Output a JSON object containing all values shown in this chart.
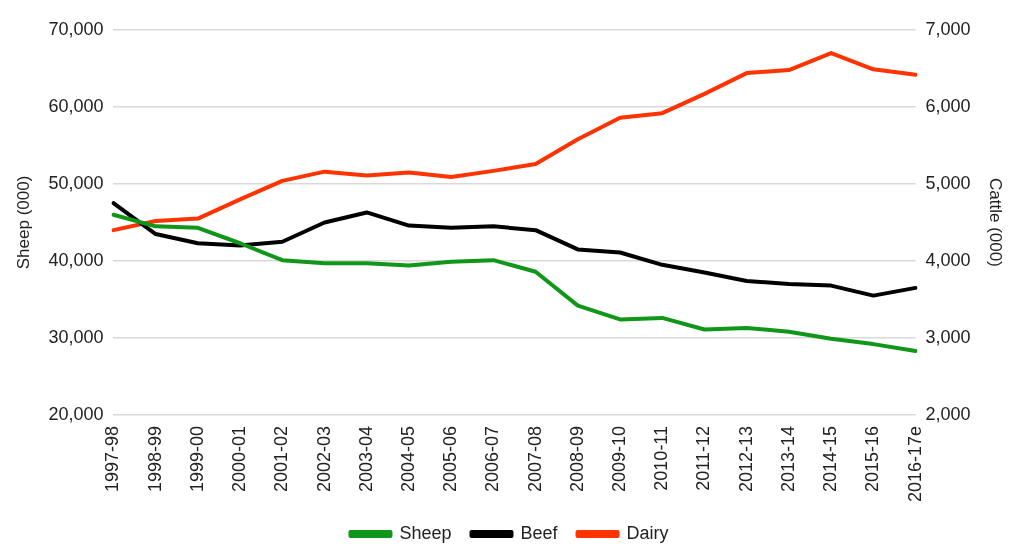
{
  "chart_data": {
    "type": "line",
    "ylabel": "Sheep (000)",
    "y2label": "Cattle (000)",
    "categories": [
      "1997-98",
      "1998-99",
      "1999-00",
      "2000-01",
      "2001-02",
      "2002-03",
      "2003-04",
      "2004-05",
      "2005-06",
      "2006-07",
      "2007-08",
      "2008-09",
      "2009-10",
      "2010-11",
      "2011-12",
      "2012-13",
      "2013-14",
      "2014-15",
      "2015-16",
      "2016-17e"
    ],
    "series": [
      {
        "name": "Sheep",
        "color": "#109618",
        "values": [
          46000,
          44500,
          44300,
          42300,
          40100,
          39700,
          39700,
          39400,
          39900,
          40100,
          38600,
          34200,
          32400,
          32600,
          31100,
          31300,
          30800,
          29900,
          29200,
          28300
        ]
      },
      {
        "name": "Beef",
        "color": "#000000",
        "axis": "y2",
        "values": [
          4750,
          4350,
          4230,
          4200,
          4250,
          4500,
          4630,
          4460,
          4430,
          4450,
          4400,
          4150,
          4110,
          3950,
          3850,
          3740,
          3700,
          3680,
          3550,
          3650
        ]
      },
      {
        "name": "Dairy",
        "color": "#ff3300",
        "axis": "y2",
        "values": [
          4400,
          4520,
          4550,
          4800,
          5040,
          5160,
          5110,
          5150,
          5090,
          5170,
          5260,
          5580,
          5860,
          5920,
          6170,
          6440,
          6480,
          6700,
          6490,
          6420
        ]
      }
    ],
    "ylim": [
      20000,
      70000
    ],
    "yticks": [
      {
        "value": 20000,
        "label": "20,000"
      },
      {
        "value": 30000,
        "label": "30,000"
      },
      {
        "value": 40000,
        "label": "40,000"
      },
      {
        "value": 50000,
        "label": "50,000"
      },
      {
        "value": 60000,
        "label": "60,000"
      },
      {
        "value": 70000,
        "label": "70,000"
      }
    ],
    "y2lim": [
      2000,
      7000
    ],
    "y2ticks": [
      {
        "value": 2000,
        "label": "2,000"
      },
      {
        "value": 3000,
        "label": "3,000"
      },
      {
        "value": 4000,
        "label": "4,000"
      },
      {
        "value": 5000,
        "label": "5,000"
      },
      {
        "value": 6000,
        "label": "6,000"
      },
      {
        "value": 7000,
        "label": "7,000"
      }
    ],
    "grid": "y",
    "legend": "bottom",
    "marker": "none",
    "line_style": "solid"
  }
}
